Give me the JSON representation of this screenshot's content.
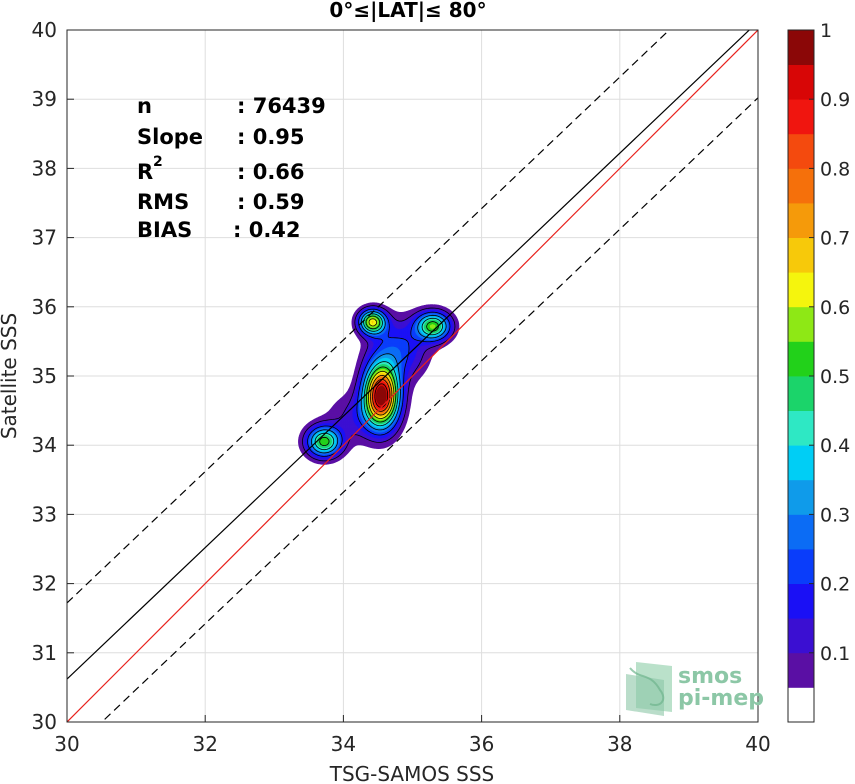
{
  "chart_data": {
    "type": "contour",
    "title": "0°≤|LAT|≤ 80°",
    "xlabel": "TSG-SAMOS SSS",
    "ylabel": "Satellite SSS",
    "xlim": [
      30,
      40
    ],
    "ylim": [
      30,
      40
    ],
    "xticks": [
      "30",
      "32",
      "34",
      "36",
      "38",
      "40"
    ],
    "yticks": [
      "30",
      "31",
      "32",
      "33",
      "34",
      "35",
      "36",
      "37",
      "38",
      "39",
      "40"
    ],
    "grid": true,
    "stats": {
      "n_label": "n",
      "n_value": ": 76439",
      "slope_label": "Slope",
      "slope_value": ": 0.95",
      "r2_label": "R",
      "r2_sup": "2",
      "r2_value": ": 0.66",
      "rms_label": "RMS",
      "rms_value": ": 0.59",
      "bias_label": "BIAS",
      "bias_value": ": 0.42"
    },
    "lines": {
      "one_to_one": {
        "color": "#e8211c",
        "x": [
          30,
          40
        ],
        "y": [
          30,
          40
        ]
      },
      "regression": {
        "color": "#000000",
        "x": [
          30,
          40
        ],
        "y": [
          30.62,
          40.12
        ]
      },
      "upper_bound": {
        "color": "#000000",
        "style": "dashed",
        "x": [
          30,
          40
        ],
        "y": [
          31.72,
          41.22
        ]
      },
      "lower_bound": {
        "color": "#000000",
        "style": "dashed",
        "x": [
          30,
          40
        ],
        "y": [
          29.52,
          39.02
        ]
      }
    },
    "density_peaks": [
      {
        "x": 34.55,
        "y": 34.72,
        "sx": 0.17,
        "sy": 0.3,
        "amp": 1.0
      },
      {
        "x": 34.42,
        "y": 35.78,
        "sx": 0.13,
        "sy": 0.12,
        "amp": 0.62
      },
      {
        "x": 35.3,
        "y": 35.72,
        "sx": 0.17,
        "sy": 0.14,
        "amp": 0.54
      },
      {
        "x": 33.72,
        "y": 34.05,
        "sx": 0.17,
        "sy": 0.15,
        "amp": 0.53
      },
      {
        "x": 34.8,
        "y": 35.38,
        "sx": 0.28,
        "sy": 0.3,
        "amp": 0.22
      },
      {
        "x": 34.2,
        "y": 34.4,
        "sx": 0.3,
        "sy": 0.25,
        "amp": 0.12
      }
    ],
    "colorbar": {
      "range": [
        0,
        1
      ],
      "ticks": [
        "0.1",
        "0.2",
        "0.3",
        "0.4",
        "0.5",
        "0.6",
        "0.7",
        "0.8",
        "0.9",
        "1"
      ],
      "levels": [
        0.05,
        0.1,
        0.15,
        0.2,
        0.25,
        0.3,
        0.35,
        0.4,
        0.45,
        0.5,
        0.55,
        0.6,
        0.65,
        0.7,
        0.75,
        0.8,
        0.85,
        0.9,
        0.95
      ],
      "colors": [
        "#ffffff",
        "#5a0fa4",
        "#3b0fd2",
        "#1a10f5",
        "#0a3dfa",
        "#0b6cf5",
        "#0f9bea",
        "#00cef5",
        "#2ee8c4",
        "#1bd46a",
        "#22d11a",
        "#8ee815",
        "#f5f50d",
        "#f7c90a",
        "#f59a0a",
        "#f5700b",
        "#f44a0e",
        "#f0150f",
        "#d80606",
        "#8b0707"
      ]
    }
  },
  "logo": {
    "line1": "smos",
    "line2": "pi-mep"
  }
}
